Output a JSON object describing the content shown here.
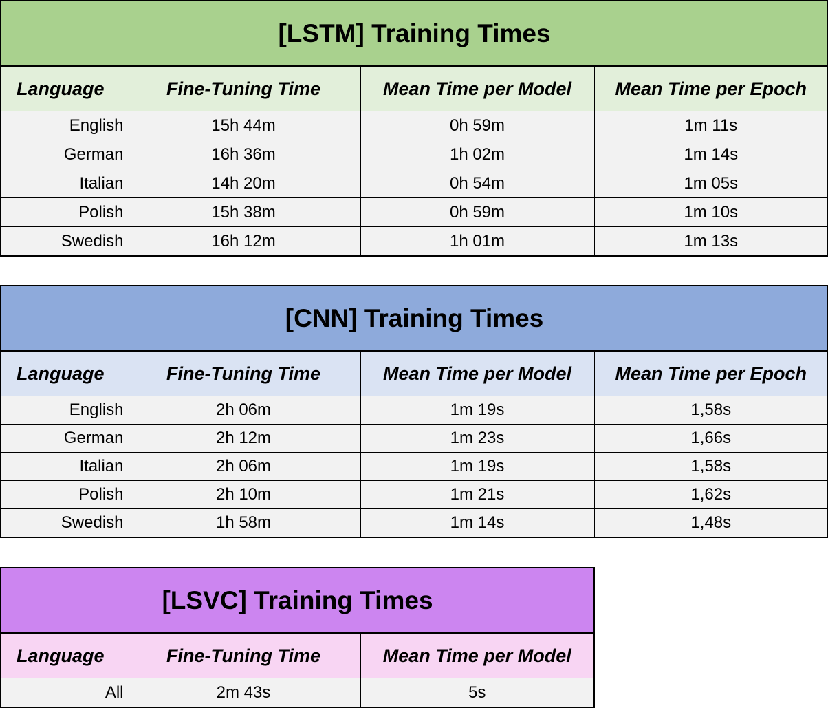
{
  "lstm": {
    "title": "[LSTM] Training Times",
    "headers": [
      "Language",
      "Fine-Tuning Time",
      "Mean Time per Model",
      "Mean Time per Epoch"
    ],
    "rows": [
      [
        "English",
        "15h 44m",
        "0h 59m",
        "1m 11s"
      ],
      [
        "German",
        "16h 36m",
        "1h 02m",
        "1m 14s"
      ],
      [
        "Italian",
        "14h 20m",
        "0h 54m",
        "1m 05s"
      ],
      [
        "Polish",
        "15h 38m",
        "0h 59m",
        "1m 10s"
      ],
      [
        "Swedish",
        "16h 12m",
        "1h 01m",
        "1m 13s"
      ]
    ]
  },
  "cnn": {
    "title": "[CNN] Training Times",
    "headers": [
      "Language",
      "Fine-Tuning Time",
      "Mean Time per Model",
      "Mean Time per Epoch"
    ],
    "rows": [
      [
        "English",
        "2h 06m",
        "1m 19s",
        "1,58s"
      ],
      [
        "German",
        "2h 12m",
        "1m 23s",
        "1,66s"
      ],
      [
        "Italian",
        "2h 06m",
        "1m 19s",
        "1,58s"
      ],
      [
        "Polish",
        "2h 10m",
        "1m 21s",
        "1,62s"
      ],
      [
        "Swedish",
        "1h 58m",
        "1m 14s",
        "1,48s"
      ]
    ]
  },
  "lsvc": {
    "title": "[LSVC] Training Times",
    "headers": [
      "Language",
      "Fine-Tuning Time",
      "Mean Time per Model"
    ],
    "rows": [
      [
        "All",
        "2m 43s",
        "5s"
      ]
    ]
  },
  "colors": {
    "lstm_title": "#a9d18e",
    "lstm_header": "#e2efda",
    "cnn_title": "#8eaadb",
    "cnn_header": "#dae3f3",
    "lsvc_title": "#cc85f0",
    "lsvc_header": "#f8d5f3",
    "cell_bg": "#f2f2f2"
  }
}
